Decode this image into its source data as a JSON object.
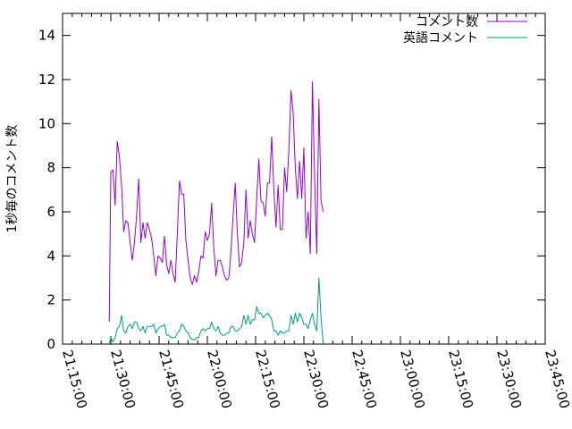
{
  "chart_data": {
    "type": "line",
    "ylabel": "1秒毎のコメント数",
    "ylim": [
      0,
      15
    ],
    "yticks": [
      0,
      2,
      4,
      6,
      8,
      10,
      12,
      14
    ],
    "xlim": [
      "21:15:00",
      "23:45:00"
    ],
    "xticks": [
      "21:15:00",
      "21:30:00",
      "21:45:00",
      "22:00:00",
      "22:15:00",
      "22:30:00",
      "22:45:00",
      "23:00:00",
      "23:15:00",
      "23:30:00",
      "23:45:00"
    ],
    "legend_position": "top-right",
    "grid": false,
    "series": [
      {
        "name": "コメント数",
        "color": "#9400d3",
        "points": [
          [
            "21:29:30",
            1.0
          ],
          [
            "21:30:00",
            7.8
          ],
          [
            "21:30:40",
            7.9
          ],
          [
            "21:31:20",
            6.3
          ],
          [
            "21:32:00",
            9.2
          ],
          [
            "21:32:40",
            8.5
          ],
          [
            "21:33:20",
            7.2
          ],
          [
            "21:34:00",
            5.1
          ],
          [
            "21:34:40",
            5.6
          ],
          [
            "21:35:20",
            5.5
          ],
          [
            "21:36:00",
            4.6
          ],
          [
            "21:36:40",
            3.8
          ],
          [
            "21:37:20",
            4.6
          ],
          [
            "21:38:00",
            5.8
          ],
          [
            "21:38:40",
            7.5
          ],
          [
            "21:39:20",
            4.6
          ],
          [
            "21:40:00",
            5.5
          ],
          [
            "21:40:40",
            4.8
          ],
          [
            "21:41:20",
            5.5
          ],
          [
            "21:42:00",
            5.2
          ],
          [
            "21:42:40",
            4.8
          ],
          [
            "21:43:20",
            4.0
          ],
          [
            "21:44:00",
            3.1
          ],
          [
            "21:44:40",
            4.0
          ],
          [
            "21:45:20",
            3.9
          ],
          [
            "21:46:00",
            3.7
          ],
          [
            "21:46:40",
            4.9
          ],
          [
            "21:47:20",
            3.6
          ],
          [
            "21:48:00",
            3.2
          ],
          [
            "21:48:40",
            3.8
          ],
          [
            "21:49:20",
            3.2
          ],
          [
            "21:50:00",
            2.8
          ],
          [
            "21:50:40",
            5.0
          ],
          [
            "21:51:20",
            7.4
          ],
          [
            "21:52:00",
            6.8
          ],
          [
            "21:52:40",
            6.8
          ],
          [
            "21:53:20",
            4.7
          ],
          [
            "21:54:00",
            3.8
          ],
          [
            "21:54:40",
            3.0
          ],
          [
            "21:55:20",
            2.7
          ],
          [
            "21:56:00",
            3.1
          ],
          [
            "21:56:40",
            2.8
          ],
          [
            "21:57:20",
            3.3
          ],
          [
            "21:58:00",
            4.0
          ],
          [
            "21:58:40",
            3.9
          ],
          [
            "21:59:20",
            5.1
          ],
          [
            "22:00:00",
            4.7
          ],
          [
            "22:00:40",
            5.0
          ],
          [
            "22:01:20",
            6.4
          ],
          [
            "22:02:00",
            4.4
          ],
          [
            "22:02:40",
            3.1
          ],
          [
            "22:03:20",
            3.8
          ],
          [
            "22:04:00",
            3.8
          ],
          [
            "22:04:40",
            3.5
          ],
          [
            "22:05:20",
            3.1
          ],
          [
            "22:06:00",
            2.9
          ],
          [
            "22:06:40",
            3.0
          ],
          [
            "22:07:20",
            4.2
          ],
          [
            "22:08:00",
            5.8
          ],
          [
            "22:08:40",
            7.3
          ],
          [
            "22:09:20",
            5.0
          ],
          [
            "22:10:00",
            3.5
          ],
          [
            "22:10:40",
            3.7
          ],
          [
            "22:11:20",
            4.6
          ],
          [
            "22:12:00",
            7.0
          ],
          [
            "22:12:40",
            4.8
          ],
          [
            "22:13:20",
            5.6
          ],
          [
            "22:14:00",
            5.0
          ],
          [
            "22:14:40",
            4.6
          ],
          [
            "22:15:20",
            6.6
          ],
          [
            "22:16:00",
            8.4
          ],
          [
            "22:16:40",
            6.5
          ],
          [
            "22:17:20",
            6.4
          ],
          [
            "22:18:00",
            5.8
          ],
          [
            "22:18:40",
            7.3
          ],
          [
            "22:19:20",
            7.3
          ],
          [
            "22:20:00",
            9.4
          ],
          [
            "22:20:40",
            7.0
          ],
          [
            "22:21:20",
            5.3
          ],
          [
            "22:22:00",
            7.2
          ],
          [
            "22:22:40",
            5.2
          ],
          [
            "22:23:20",
            5.2
          ],
          [
            "22:24:00",
            8.0
          ],
          [
            "22:24:40",
            6.9
          ],
          [
            "22:25:20",
            8.8
          ],
          [
            "22:26:00",
            11.5
          ],
          [
            "22:26:40",
            10.5
          ],
          [
            "22:27:20",
            8.0
          ],
          [
            "22:28:00",
            6.6
          ],
          [
            "22:28:40",
            8.3
          ],
          [
            "22:29:20",
            6.6
          ],
          [
            "22:30:00",
            8.9
          ],
          [
            "22:30:40",
            4.8
          ],
          [
            "22:31:20",
            6.0
          ],
          [
            "22:32:00",
            4.1
          ],
          [
            "22:32:40",
            11.9
          ],
          [
            "22:33:20",
            7.6
          ],
          [
            "22:34:00",
            4.1
          ],
          [
            "22:34:40",
            11.1
          ],
          [
            "22:35:20",
            6.5
          ],
          [
            "22:36:00",
            6.0
          ]
        ]
      },
      {
        "name": "英語コメント",
        "color": "#009e73",
        "points": [
          [
            "21:29:30",
            0.0
          ],
          [
            "21:30:00",
            0.3
          ],
          [
            "21:30:40",
            0.1
          ],
          [
            "21:31:20",
            0.3
          ],
          [
            "21:32:00",
            0.7
          ],
          [
            "21:32:40",
            0.8
          ],
          [
            "21:33:20",
            1.3
          ],
          [
            "21:34:00",
            0.6
          ],
          [
            "21:34:40",
            0.5
          ],
          [
            "21:35:20",
            0.8
          ],
          [
            "21:36:00",
            0.9
          ],
          [
            "21:36:40",
            0.7
          ],
          [
            "21:37:20",
            1.0
          ],
          [
            "21:38:00",
            1.0
          ],
          [
            "21:38:40",
            0.7
          ],
          [
            "21:39:20",
            0.6
          ],
          [
            "21:40:00",
            0.8
          ],
          [
            "21:40:40",
            0.5
          ],
          [
            "21:41:20",
            0.8
          ],
          [
            "21:42:00",
            0.8
          ],
          [
            "21:42:40",
            0.8
          ],
          [
            "21:43:20",
            0.9
          ],
          [
            "21:44:00",
            0.5
          ],
          [
            "21:44:40",
            0.7
          ],
          [
            "21:45:20",
            0.8
          ],
          [
            "21:46:00",
            0.8
          ],
          [
            "21:46:40",
            0.9
          ],
          [
            "21:47:20",
            0.4
          ],
          [
            "21:48:00",
            0.4
          ],
          [
            "21:48:40",
            0.3
          ],
          [
            "21:49:20",
            0.3
          ],
          [
            "21:50:00",
            0.3
          ],
          [
            "21:50:40",
            0.5
          ],
          [
            "21:51:20",
            0.6
          ],
          [
            "21:52:00",
            0.9
          ],
          [
            "21:52:40",
            0.8
          ],
          [
            "21:53:20",
            0.6
          ],
          [
            "21:54:00",
            0.5
          ],
          [
            "21:54:40",
            0.3
          ],
          [
            "21:55:20",
            0.2
          ],
          [
            "21:56:00",
            0.2
          ],
          [
            "21:56:40",
            0.3
          ],
          [
            "21:57:20",
            0.3
          ],
          [
            "21:58:00",
            0.6
          ],
          [
            "21:58:40",
            0.7
          ],
          [
            "21:59:20",
            0.6
          ],
          [
            "22:00:00",
            0.7
          ],
          [
            "22:00:40",
            0.7
          ],
          [
            "22:01:20",
            1.0
          ],
          [
            "22:02:00",
            0.7
          ],
          [
            "22:02:40",
            0.6
          ],
          [
            "22:03:20",
            0.8
          ],
          [
            "22:04:00",
            0.5
          ],
          [
            "22:04:40",
            0.4
          ],
          [
            "22:05:20",
            0.4
          ],
          [
            "22:06:00",
            0.5
          ],
          [
            "22:06:40",
            0.5
          ],
          [
            "22:07:20",
            0.8
          ],
          [
            "22:08:00",
            0.8
          ],
          [
            "22:08:40",
            0.6
          ],
          [
            "22:09:20",
            0.6
          ],
          [
            "22:10:00",
            0.7
          ],
          [
            "22:10:40",
            0.8
          ],
          [
            "22:11:20",
            1.3
          ],
          [
            "22:12:00",
            0.9
          ],
          [
            "22:12:40",
            1.3
          ],
          [
            "22:13:20",
            0.9
          ],
          [
            "22:14:00",
            1.1
          ],
          [
            "22:14:40",
            1.1
          ],
          [
            "22:15:20",
            1.7
          ],
          [
            "22:16:00",
            1.4
          ],
          [
            "22:16:40",
            1.4
          ],
          [
            "22:17:20",
            1.2
          ],
          [
            "22:18:00",
            1.3
          ],
          [
            "22:18:40",
            1.4
          ],
          [
            "22:19:20",
            1.3
          ],
          [
            "22:20:00",
            1.1
          ],
          [
            "22:20:40",
            0.6
          ],
          [
            "22:21:20",
            0.6
          ],
          [
            "22:22:00",
            0.4
          ],
          [
            "22:22:40",
            0.6
          ],
          [
            "22:23:20",
            0.5
          ],
          [
            "22:24:00",
            0.5
          ],
          [
            "22:24:40",
            0.6
          ],
          [
            "22:25:20",
            0.6
          ],
          [
            "22:26:00",
            1.3
          ],
          [
            "22:26:40",
            0.9
          ],
          [
            "22:27:20",
            1.4
          ],
          [
            "22:28:00",
            1.0
          ],
          [
            "22:28:40",
            1.4
          ],
          [
            "22:29:20",
            1.2
          ],
          [
            "22:30:00",
            0.9
          ],
          [
            "22:30:40",
            0.9
          ],
          [
            "22:31:20",
            0.7
          ],
          [
            "22:32:00",
            1.1
          ],
          [
            "22:32:40",
            1.4
          ],
          [
            "22:33:20",
            0.9
          ],
          [
            "22:34:00",
            0.6
          ],
          [
            "22:34:40",
            3.0
          ],
          [
            "22:35:20",
            1.2
          ],
          [
            "22:36:00",
            0.0
          ]
        ]
      }
    ]
  }
}
